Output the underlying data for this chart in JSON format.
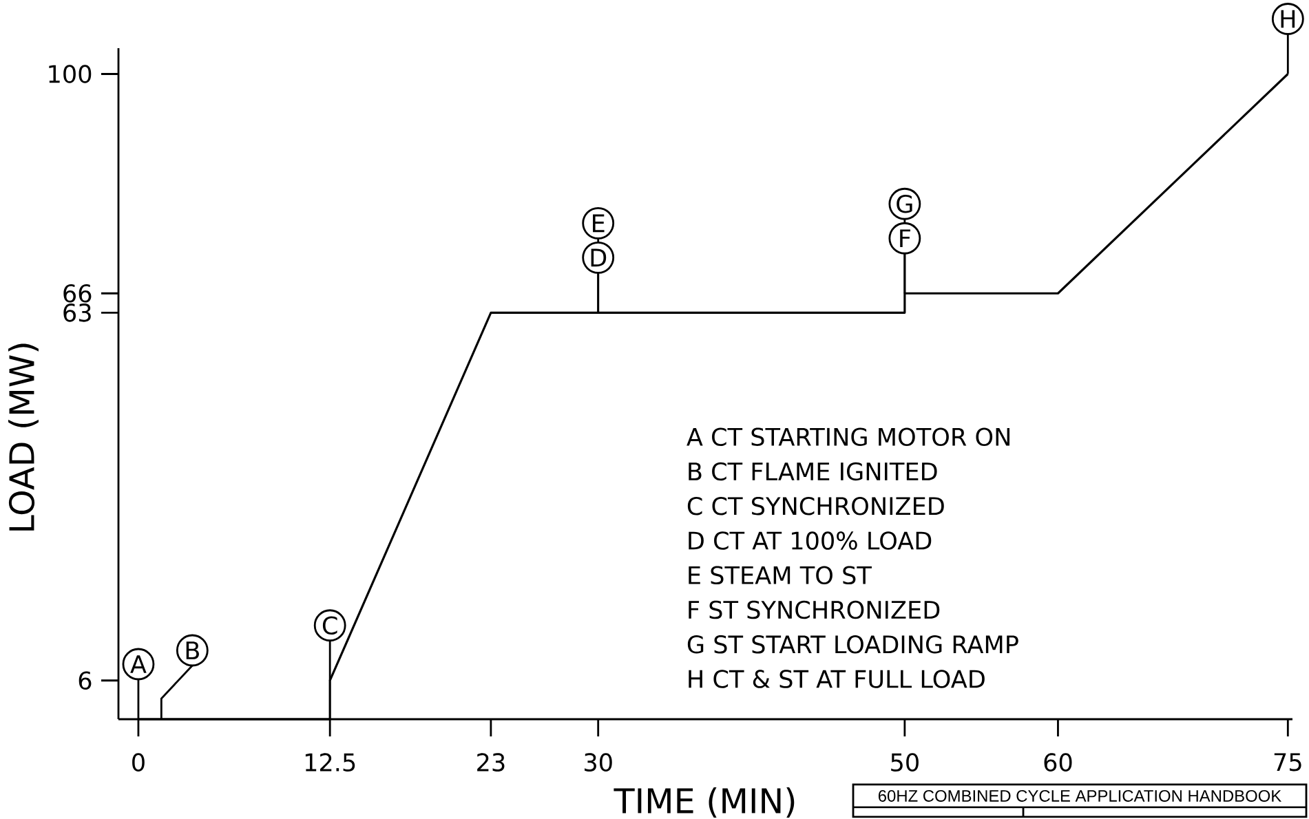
{
  "chart_data": {
    "type": "line",
    "title": "60HZ COMBINED CYCLE APPLICATION HANDBOOK",
    "xlabel": "TIME (MIN)",
    "ylabel": "LOAD (MW)",
    "x": [
      0,
      12.5,
      12.5,
      23,
      50,
      50,
      60,
      75
    ],
    "values": [
      0,
      0,
      6,
      63,
      63,
      66,
      66,
      100
    ],
    "color": "#000000",
    "xlim": [
      -1.3,
      75.3
    ],
    "ylim": [
      0,
      104
    ],
    "xticks": [
      0,
      12.5,
      23,
      30,
      50,
      60,
      75
    ],
    "yticks": [
      6,
      63,
      66,
      100
    ],
    "annotations": [
      {
        "text": "A",
        "x": 0,
        "y": 0
      },
      {
        "text": "B",
        "x": 1.5,
        "y": 0
      },
      {
        "text": "C",
        "x": 12.5,
        "y": 6
      },
      {
        "text": "D",
        "x": 30,
        "y": 63
      },
      {
        "text": "E",
        "x": 30,
        "y": 63
      },
      {
        "text": "F",
        "x": 50,
        "y": 66
      },
      {
        "text": "G",
        "x": 50,
        "y": 66
      },
      {
        "text": "H",
        "x": 75,
        "y": 100
      },
      "A  CT  STARTING  MOTOR  ON",
      "B  CT  FLAME  IGNITED",
      "C  CT  SYNCHRONIZED",
      "D  CT  AT  100%  LOAD",
      "E  STEAM  TO  ST",
      "F  ST  SYNCHRONIZED",
      "G  ST  START  LOADING  RAMP",
      "H  CT  &  ST  AT  FULL  LOAD"
    ]
  }
}
